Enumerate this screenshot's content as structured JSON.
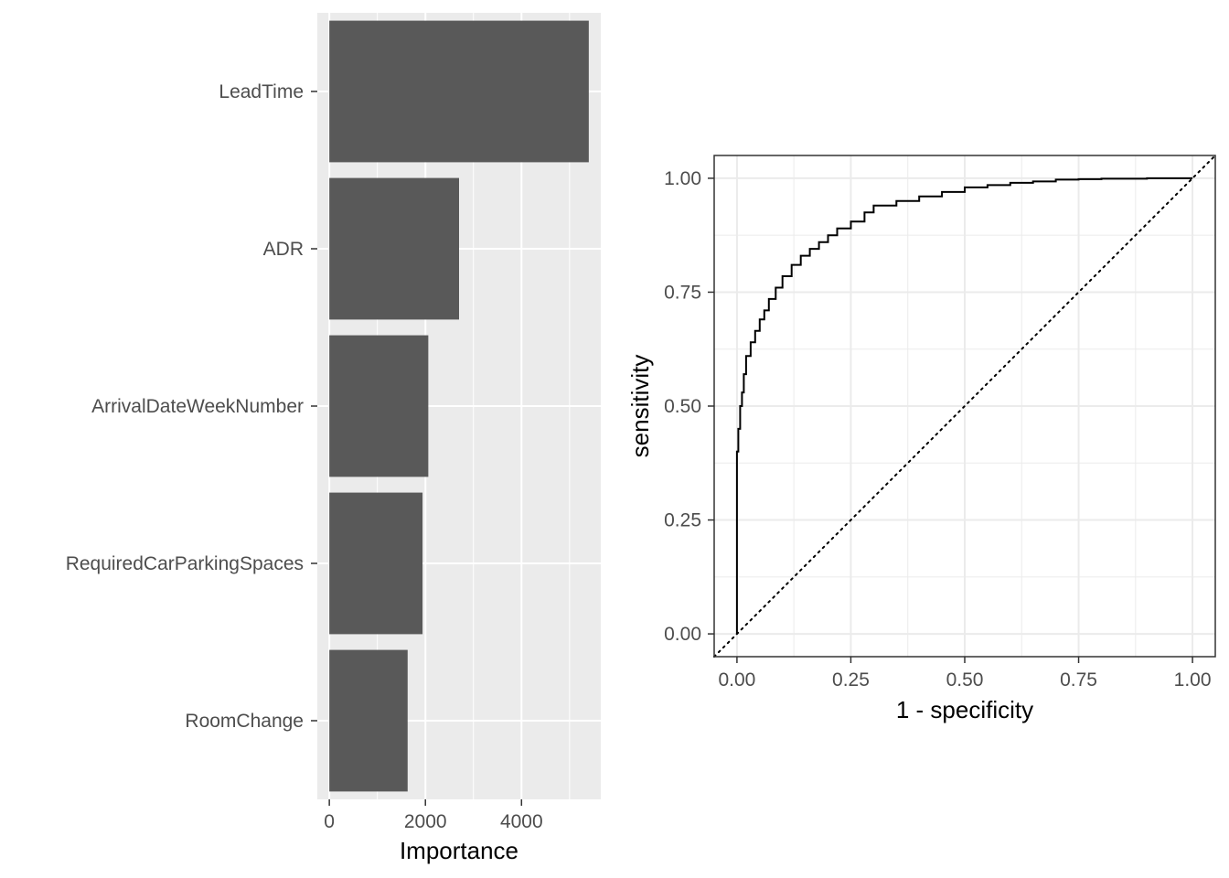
{
  "chart_data": [
    {
      "type": "bar",
      "orientation": "horizontal",
      "categories": [
        "LeadTime",
        "ADR",
        "ArrivalDateWeekNumber",
        "RequiredCarParkingSpaces",
        "RoomChange"
      ],
      "values": [
        5400,
        2700,
        2060,
        1940,
        1630
      ],
      "title": "",
      "xlabel": "Importance",
      "ylabel": "",
      "xlim": [
        -250,
        5650
      ],
      "xticks": [
        "0",
        "2000",
        "4000"
      ],
      "xtick_values": [
        0,
        2000,
        4000
      ],
      "grid": true,
      "theme": "gray",
      "colors": {
        "bar": "#595959",
        "panel": "#ebebeb",
        "grid": "#ffffff"
      }
    },
    {
      "type": "line",
      "title": "",
      "xlabel": "1 - specificity",
      "ylabel": "sensitivity",
      "xlim": [
        -0.05,
        1.05
      ],
      "ylim": [
        -0.05,
        1.05
      ],
      "xticks": [
        "0.00",
        "0.25",
        "0.50",
        "0.75",
        "1.00"
      ],
      "yticks": [
        "0.00",
        "0.25",
        "0.50",
        "0.75",
        "1.00"
      ],
      "tick_values": [
        0,
        0.25,
        0.5,
        0.75,
        1.0
      ],
      "grid": true,
      "theme": "bw",
      "series": [
        {
          "type": "step",
          "x": [
            0.0,
            0.0,
            0.003,
            0.007,
            0.011,
            0.015,
            0.02,
            0.03,
            0.04,
            0.05,
            0.06,
            0.07,
            0.085,
            0.1,
            0.12,
            0.14,
            0.16,
            0.18,
            0.2,
            0.22,
            0.25,
            0.28,
            0.3,
            0.35,
            0.4,
            0.45,
            0.5,
            0.55,
            0.6,
            0.65,
            0.7,
            0.75,
            0.8,
            0.9,
            1.0
          ],
          "y": [
            0.0,
            0.3,
            0.4,
            0.45,
            0.5,
            0.53,
            0.57,
            0.61,
            0.64,
            0.665,
            0.69,
            0.71,
            0.735,
            0.76,
            0.785,
            0.81,
            0.83,
            0.845,
            0.86,
            0.875,
            0.89,
            0.905,
            0.925,
            0.94,
            0.95,
            0.96,
            0.97,
            0.98,
            0.985,
            0.99,
            0.993,
            0.997,
            0.998,
            0.999,
            1.0
          ]
        },
        {
          "type": "diagonal",
          "dash": "dotted",
          "x": [
            -0.05,
            1.05
          ],
          "y": [
            -0.05,
            1.05
          ]
        }
      ],
      "colors": {
        "line": "#000000",
        "panel": "#ffffff",
        "grid": "#ebebeb",
        "border": "#333333"
      }
    }
  ]
}
